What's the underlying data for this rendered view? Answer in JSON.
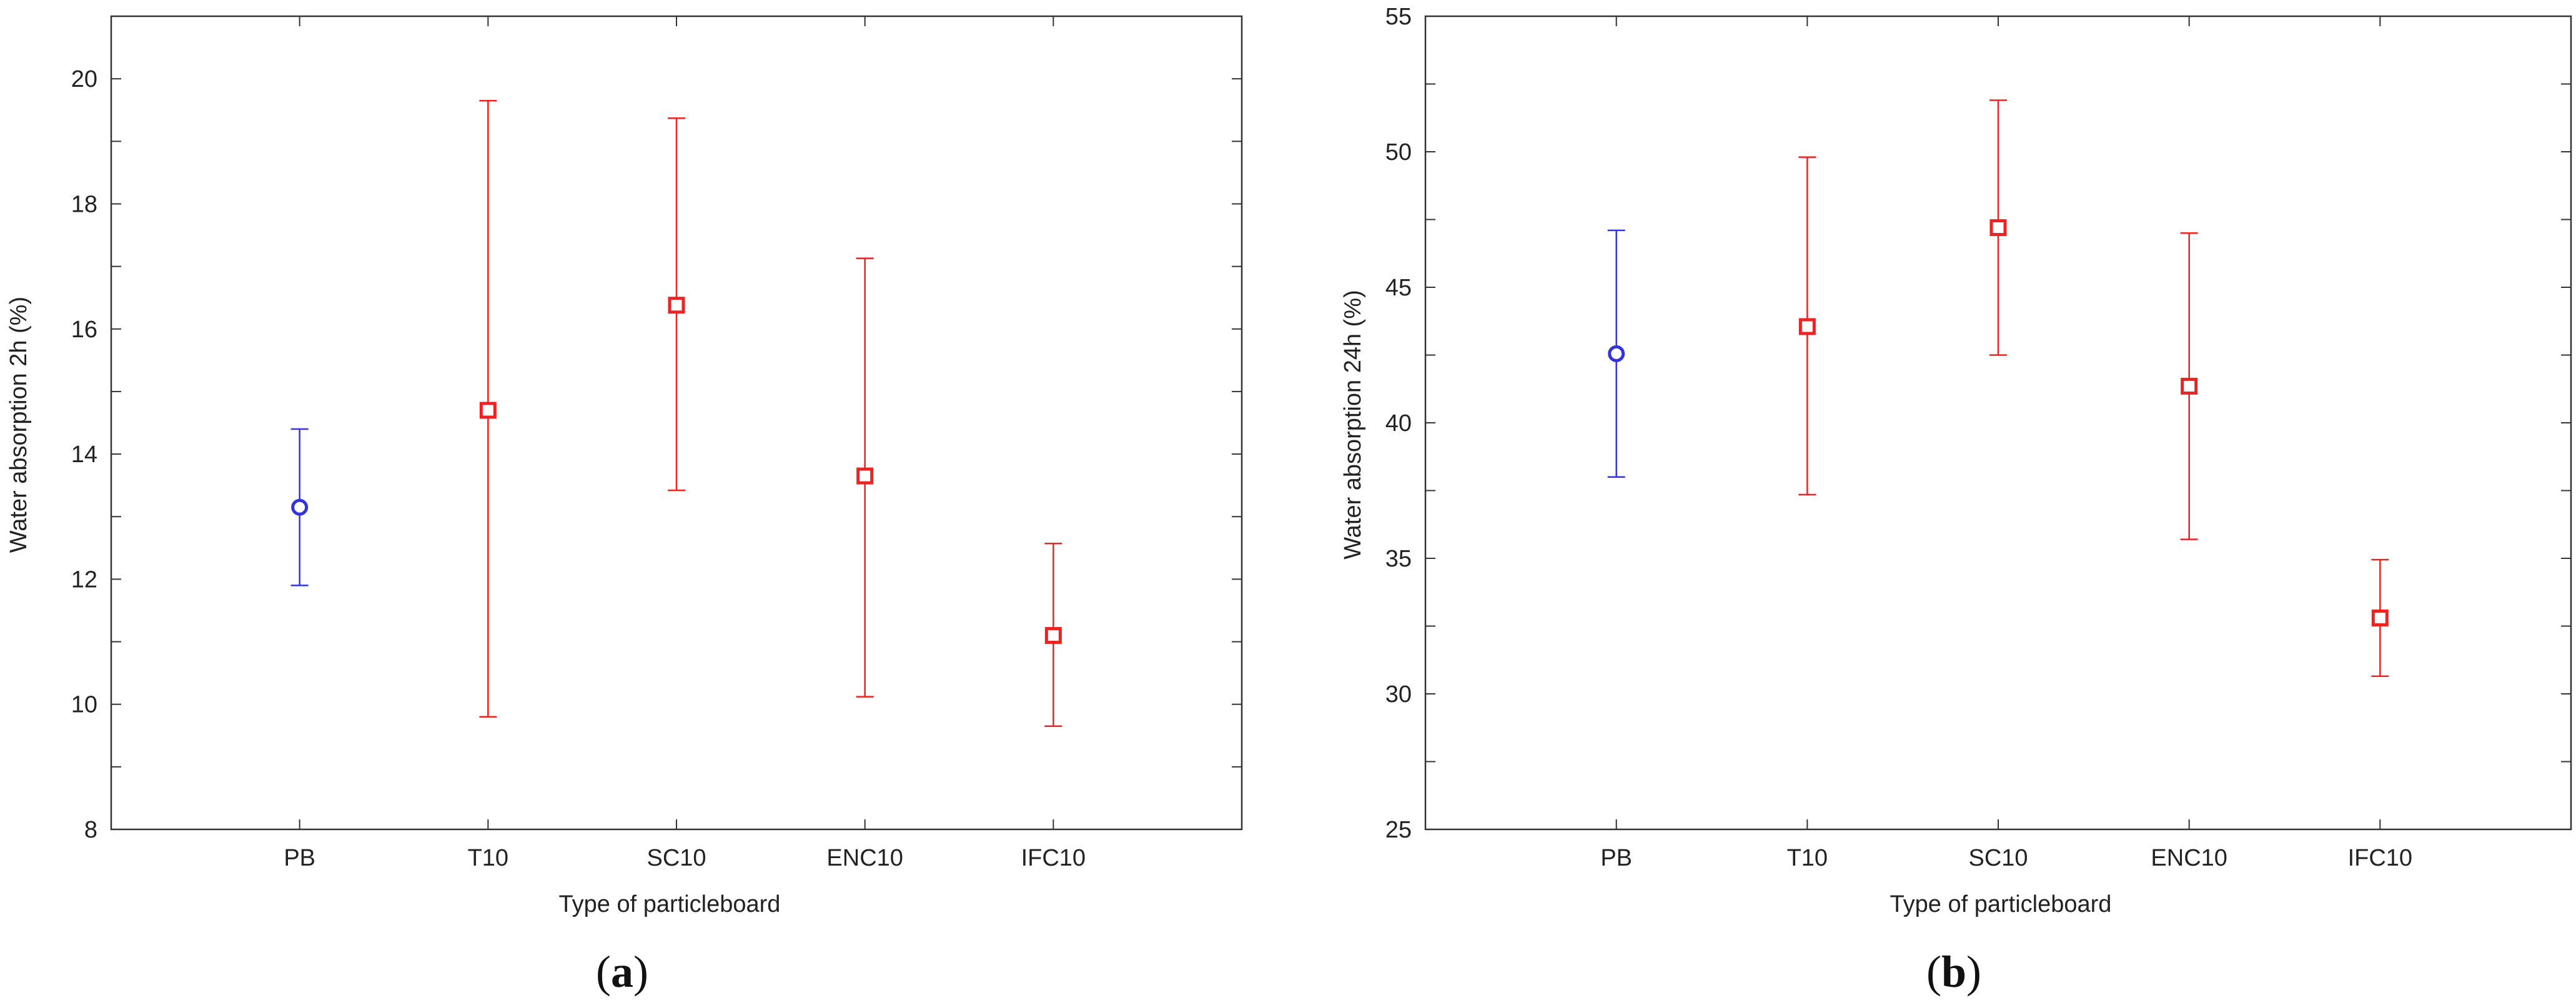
{
  "chart_data": [
    {
      "type": "scatter",
      "panel_label": "a",
      "xlabel": "Type of particleboard",
      "ylabel": "Water absorption 2h (%)",
      "ylim": [
        8,
        21
      ],
      "yticks": [
        8,
        10,
        12,
        14,
        16,
        18,
        20
      ],
      "categories": [
        "PB",
        "T10",
        "SC10",
        "ENC10",
        "IFC10"
      ],
      "grid": false,
      "points": [
        {
          "category": "PB",
          "mean": 13.15,
          "lower": 11.9,
          "upper": 14.4,
          "marker": "circle",
          "color": "#3333dd"
        },
        {
          "category": "T10",
          "mean": 14.7,
          "lower": 9.8,
          "upper": 19.65,
          "marker": "square",
          "color": "#ee2222"
        },
        {
          "category": "SC10",
          "mean": 16.38,
          "lower": 13.42,
          "upper": 19.37,
          "marker": "square",
          "color": "#ee2222"
        },
        {
          "category": "ENC10",
          "mean": 13.65,
          "lower": 10.12,
          "upper": 17.13,
          "marker": "square",
          "color": "#ee2222"
        },
        {
          "category": "IFC10",
          "mean": 11.1,
          "lower": 9.65,
          "upper": 12.57,
          "marker": "square",
          "color": "#ee2222"
        }
      ]
    },
    {
      "type": "scatter",
      "panel_label": "b",
      "xlabel": "Type of particleboard",
      "ylabel": "Water absorption 24h (%)",
      "ylim": [
        25,
        55
      ],
      "yticks": [
        25,
        30,
        35,
        40,
        45,
        50,
        55
      ],
      "categories": [
        "PB",
        "T10",
        "SC10",
        "ENC10",
        "IFC10"
      ],
      "grid": false,
      "points": [
        {
          "category": "PB",
          "mean": 42.55,
          "lower": 38.0,
          "upper": 47.1,
          "marker": "circle",
          "color": "#3333dd"
        },
        {
          "category": "T10",
          "mean": 43.55,
          "lower": 37.35,
          "upper": 49.8,
          "marker": "square",
          "color": "#ee2222"
        },
        {
          "category": "SC10",
          "mean": 47.2,
          "lower": 42.5,
          "upper": 51.9,
          "marker": "square",
          "color": "#ee2222"
        },
        {
          "category": "ENC10",
          "mean": 41.35,
          "lower": 35.7,
          "upper": 47.0,
          "marker": "square",
          "color": "#ee2222"
        },
        {
          "category": "IFC10",
          "mean": 32.8,
          "lower": 30.65,
          "upper": 34.95,
          "marker": "square",
          "color": "#ee2222"
        }
      ]
    }
  ]
}
